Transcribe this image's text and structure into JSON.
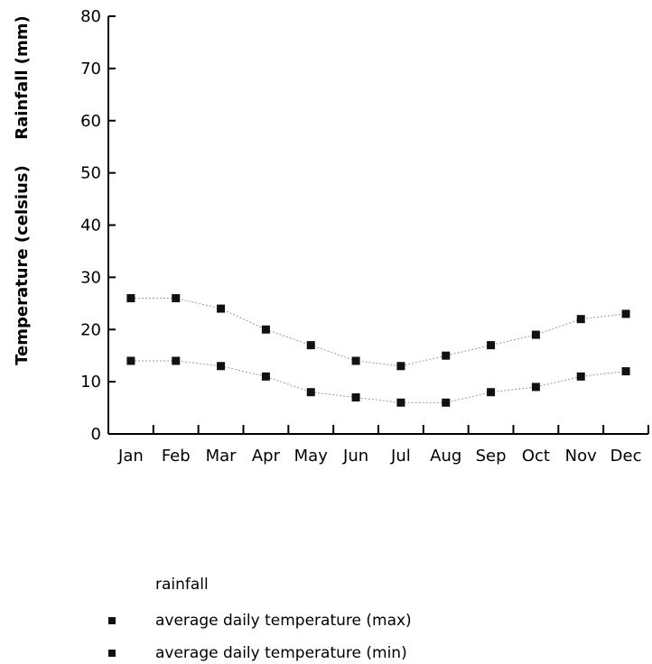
{
  "chart_data": {
    "type": "line",
    "categories": [
      "Jan",
      "Feb",
      "Mar",
      "Apr",
      "May",
      "Jun",
      "Jul",
      "Aug",
      "Sep",
      "Oct",
      "Nov",
      "Dec"
    ],
    "y_ticks": [
      "0",
      "10",
      "20",
      "30",
      "40",
      "50",
      "60",
      "70",
      "80"
    ],
    "ylim": [
      0,
      80
    ],
    "ylabel_rainfall": "Rainfall (mm)",
    "ylabel_temperature": "Temperature (celsius)",
    "grid": false,
    "legend_position": "bottom-left",
    "legend": {
      "rainfall": "rainfall",
      "max": "average daily temperature (max)",
      "min": "average daily temperature (min)"
    },
    "series": [
      {
        "name": "average daily temperature (max)",
        "values": [
          26,
          26,
          24,
          20,
          17,
          14,
          13,
          15,
          17,
          19,
          22,
          23
        ]
      },
      {
        "name": "average daily temperature (min)",
        "values": [
          14,
          14,
          13,
          11,
          8,
          7,
          6,
          6,
          8,
          9,
          11,
          12
        ]
      }
    ],
    "colors": {
      "marker": "#111111",
      "line": "#9a9a9a",
      "axis": "#000000"
    }
  }
}
